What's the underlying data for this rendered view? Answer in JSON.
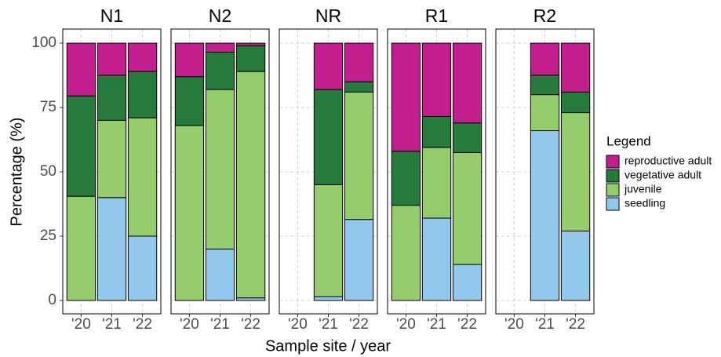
{
  "chart_data": {
    "type": "bar",
    "stacked": true,
    "xlabel": "Sample site / year",
    "ylabel": "Percentage (%)",
    "legend_title": "Legend",
    "legend": "right",
    "grid": true,
    "ylim": [
      -5.2,
      105.5
    ],
    "yticks": [
      0,
      25,
      50,
      75,
      100
    ],
    "facets": [
      {
        "title": "N1",
        "categories": [
          "'20",
          "'21",
          "'22"
        ]
      },
      {
        "title": "N2",
        "categories": [
          "'20",
          "'21",
          "'22"
        ]
      },
      {
        "title": "NR",
        "categories": [
          "'20",
          "'21",
          "'22"
        ]
      },
      {
        "title": "R1",
        "categories": [
          "'20",
          "'21",
          "'22"
        ]
      },
      {
        "title": "R2",
        "categories": [
          "'20",
          "'21",
          "'22"
        ]
      }
    ],
    "series": [
      {
        "name": "seedling",
        "color": "#92c8ec",
        "values": [
          [
            0,
            40,
            25
          ],
          [
            0,
            20,
            1
          ],
          [
            null,
            1.5,
            31.5
          ],
          [
            0,
            32,
            14
          ],
          [
            null,
            66,
            27
          ]
        ]
      },
      {
        "name": "juvenile",
        "color": "#96cd6c",
        "values": [
          [
            40.5,
            30,
            46
          ],
          [
            68,
            62,
            88
          ],
          [
            null,
            43.5,
            49.5
          ],
          [
            37,
            27.5,
            43.5
          ],
          [
            null,
            14,
            46
          ]
        ]
      },
      {
        "name": "vegetative adult",
        "color": "#257a3c",
        "values": [
          [
            39,
            17.5,
            18
          ],
          [
            19,
            14.5,
            10
          ],
          [
            null,
            37,
            4
          ],
          [
            21,
            12,
            11.5
          ],
          [
            null,
            7.5,
            8
          ]
        ]
      },
      {
        "name": "reproductive adult",
        "color": "#c21e8e",
        "values": [
          [
            20.5,
            12.5,
            11
          ],
          [
            13,
            3.5,
            1
          ],
          [
            null,
            18,
            15
          ],
          [
            42,
            28.5,
            31
          ],
          [
            null,
            12.5,
            19
          ]
        ]
      }
    ]
  }
}
